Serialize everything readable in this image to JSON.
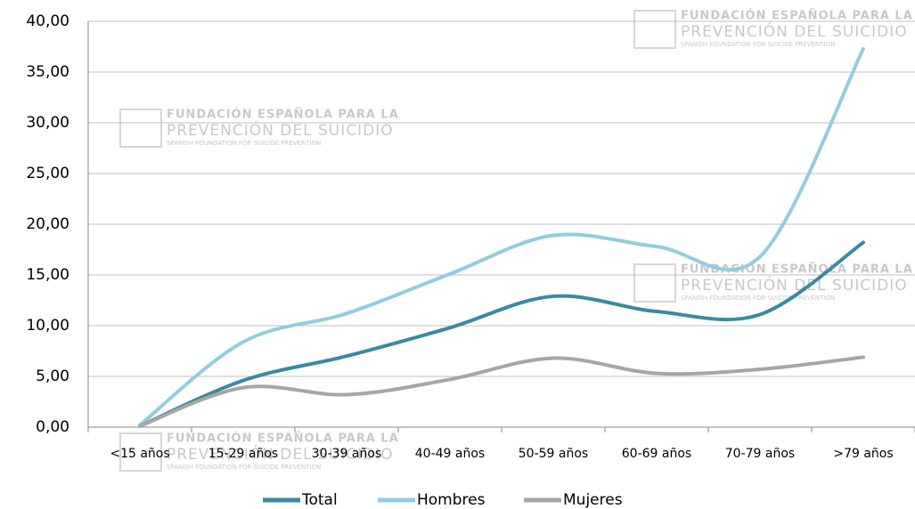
{
  "chart_data": {
    "type": "line",
    "categories": [
      "<15 años",
      "15-29 años",
      "30-39 años",
      "40-49 años",
      "50-59 años",
      "60-69 años",
      "70-79 años",
      ">79 años"
    ],
    "series": [
      {
        "name": "Total",
        "color": "#3a8aa0",
        "values": [
          0.1,
          4.6,
          7.0,
          9.8,
          12.9,
          11.4,
          11.1,
          18.2
        ]
      },
      {
        "name": "Hombres",
        "color": "#92cddd",
        "values": [
          0.2,
          8.4,
          11.2,
          15.1,
          18.9,
          17.8,
          16.8,
          37.3
        ]
      },
      {
        "name": "Mujeres",
        "color": "#a6a6a6",
        "values": [
          0.1,
          3.9,
          3.2,
          4.7,
          6.8,
          5.3,
          5.7,
          6.9
        ]
      }
    ],
    "ylim": [
      0,
      40
    ],
    "yticks": [
      {
        "value": 0,
        "label": "0,00"
      },
      {
        "value": 5,
        "label": "5,00"
      },
      {
        "value": 10,
        "label": "10,00"
      },
      {
        "value": 15,
        "label": "15,00"
      },
      {
        "value": 20,
        "label": "20,00"
      },
      {
        "value": 25,
        "label": "25,00"
      },
      {
        "value": 30,
        "label": "30,00"
      },
      {
        "value": 35,
        "label": "35,00"
      },
      {
        "value": 40,
        "label": "40,00"
      }
    ],
    "grid": true,
    "legend": "bottom",
    "watermark": [
      "FUNDACIÓN ESPAÑOLA PARA LA",
      "PREVENCIÓN DEL SUICIDIO",
      "SPANISH FOUNDATION FOR SUICIDE PREVENTION"
    ]
  }
}
